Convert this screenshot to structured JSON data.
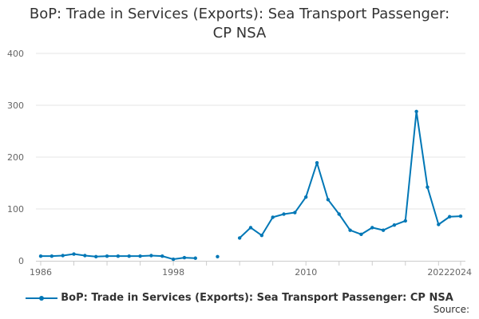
{
  "chart_data": {
    "type": "line",
    "title_line1": "BoP: Trade in Services (Exports): Sea Transport Passenger:",
    "title_line2": "CP NSA",
    "xlabel": "",
    "ylabel": "",
    "xlim": [
      1986,
      2024
    ],
    "ylim": [
      0,
      400
    ],
    "y_ticks": [
      0,
      100,
      200,
      300,
      400
    ],
    "x_ticks": [
      {
        "value": 1986,
        "label": "1986"
      },
      {
        "value": 1998,
        "label": "1998"
      },
      {
        "value": 2010,
        "label": "2010"
      },
      {
        "value": 2022,
        "label": "2022"
      },
      {
        "value": 2024,
        "label": "2024"
      }
    ],
    "grid": true,
    "legend_position": "bottom",
    "series": [
      {
        "name": "BoP: Trade in Services (Exports): Sea Transport Passenger: CP NSA",
        "color": "#0077b6",
        "x": [
          1986,
          1987,
          1988,
          1989,
          1990,
          1991,
          1992,
          1993,
          1994,
          1995,
          1996,
          1997,
          1998,
          1999,
          2000,
          2001,
          2002,
          2003,
          2004,
          2005,
          2006,
          2007,
          2008,
          2009,
          2010,
          2011,
          2012,
          2013,
          2014,
          2015,
          2016,
          2017,
          2018,
          2019,
          2020,
          2021,
          2022,
          2023,
          2024
        ],
        "y": [
          9,
          9,
          10,
          13,
          10,
          8,
          9,
          9,
          9,
          9,
          10,
          9,
          3,
          6,
          5,
          null,
          8,
          null,
          44,
          64,
          49,
          84,
          90,
          93,
          123,
          189,
          118,
          90,
          59,
          51,
          64,
          59,
          69,
          77,
          288,
          142,
          70,
          85,
          86
        ]
      }
    ]
  },
  "legend": {
    "label": "BoP: Trade in Services (Exports): Sea Transport Passenger: CP NSA"
  },
  "source_label": "Source:"
}
